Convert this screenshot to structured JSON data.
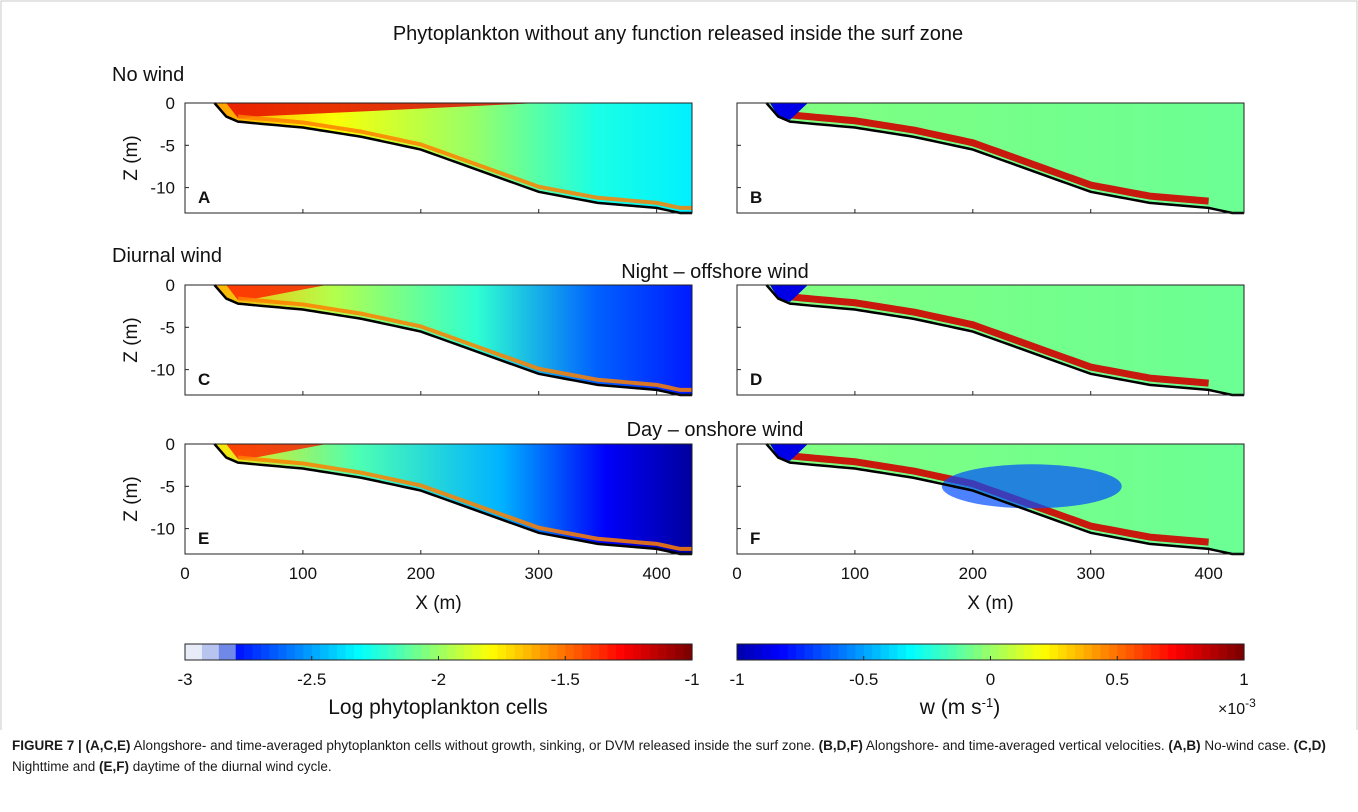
{
  "figure": {
    "title": "Phytoplankton without any function released inside the surf zone",
    "row_labels": [
      "No wind",
      "Diurnal wind"
    ],
    "subtitles": [
      "Night – offshore wind",
      "Day – onshore wind"
    ],
    "ylabel": "Z (m)",
    "xlabel": "X (m)",
    "xticks": [
      "0",
      "100",
      "200",
      "300",
      "400"
    ],
    "yticks": [
      "0",
      "-5",
      "-10"
    ],
    "colorbar_left": {
      "label": "Log phytoplankton cells",
      "ticks": [
        "-3",
        "-2.5",
        "-2",
        "-1.5",
        "-1"
      ]
    },
    "colorbar_right": {
      "label_main": "w (m s",
      "label_sup": "-1",
      "label_end": ")",
      "ticks": [
        "-1",
        "-0.5",
        "0",
        "0.5",
        "1"
      ],
      "multiplier": "×10",
      "multiplier_exp": "-3"
    }
  },
  "chart_data": {
    "type": "heatmap",
    "panels": [
      {
        "letter": "A",
        "field": "Log phytoplankton cells",
        "case": "No wind"
      },
      {
        "letter": "B",
        "field": "w",
        "case": "No wind"
      },
      {
        "letter": "C",
        "field": "Log phytoplankton cells",
        "case": "Night – offshore wind"
      },
      {
        "letter": "D",
        "field": "w",
        "case": "Night – offshore wind"
      },
      {
        "letter": "E",
        "field": "Log phytoplankton cells",
        "case": "Day – onshore wind"
      },
      {
        "letter": "F",
        "field": "w",
        "case": "Day – onshore wind"
      }
    ],
    "xlim": [
      0,
      430
    ],
    "ylim": [
      -13,
      0
    ],
    "bathymetry": {
      "x": [
        25,
        35,
        45,
        60,
        100,
        150,
        200,
        250,
        300,
        350,
        400,
        420
      ],
      "z": [
        0,
        -1.6,
        -2.2,
        -2.4,
        -2.9,
        -4,
        -5.5,
        -8,
        -10.5,
        -11.8,
        -12.4,
        -13
      ]
    },
    "colorbar_log_cells": {
      "range": [
        -3,
        -1
      ]
    },
    "colorbar_w": {
      "range": [
        -1,
        1
      ],
      "scale": "1e-3"
    }
  },
  "caption": {
    "fig_label": "FIGURE 7 | ",
    "parts": [
      {
        "bold": "(A,C,E)",
        "text": " Alongshore- and time-averaged phytoplankton cells without growth, sinking, or DVM released inside the surf zone. "
      },
      {
        "bold": "(B,D,F)",
        "text": " Alongshore- and time-averaged vertical velocities. "
      },
      {
        "bold": "(A,B)",
        "text": " No-wind case. "
      },
      {
        "bold": "(C,D)",
        "text": " Nighttime and "
      },
      {
        "bold": "(E,F)",
        "text": " daytime of the diurnal wind cycle."
      }
    ]
  }
}
